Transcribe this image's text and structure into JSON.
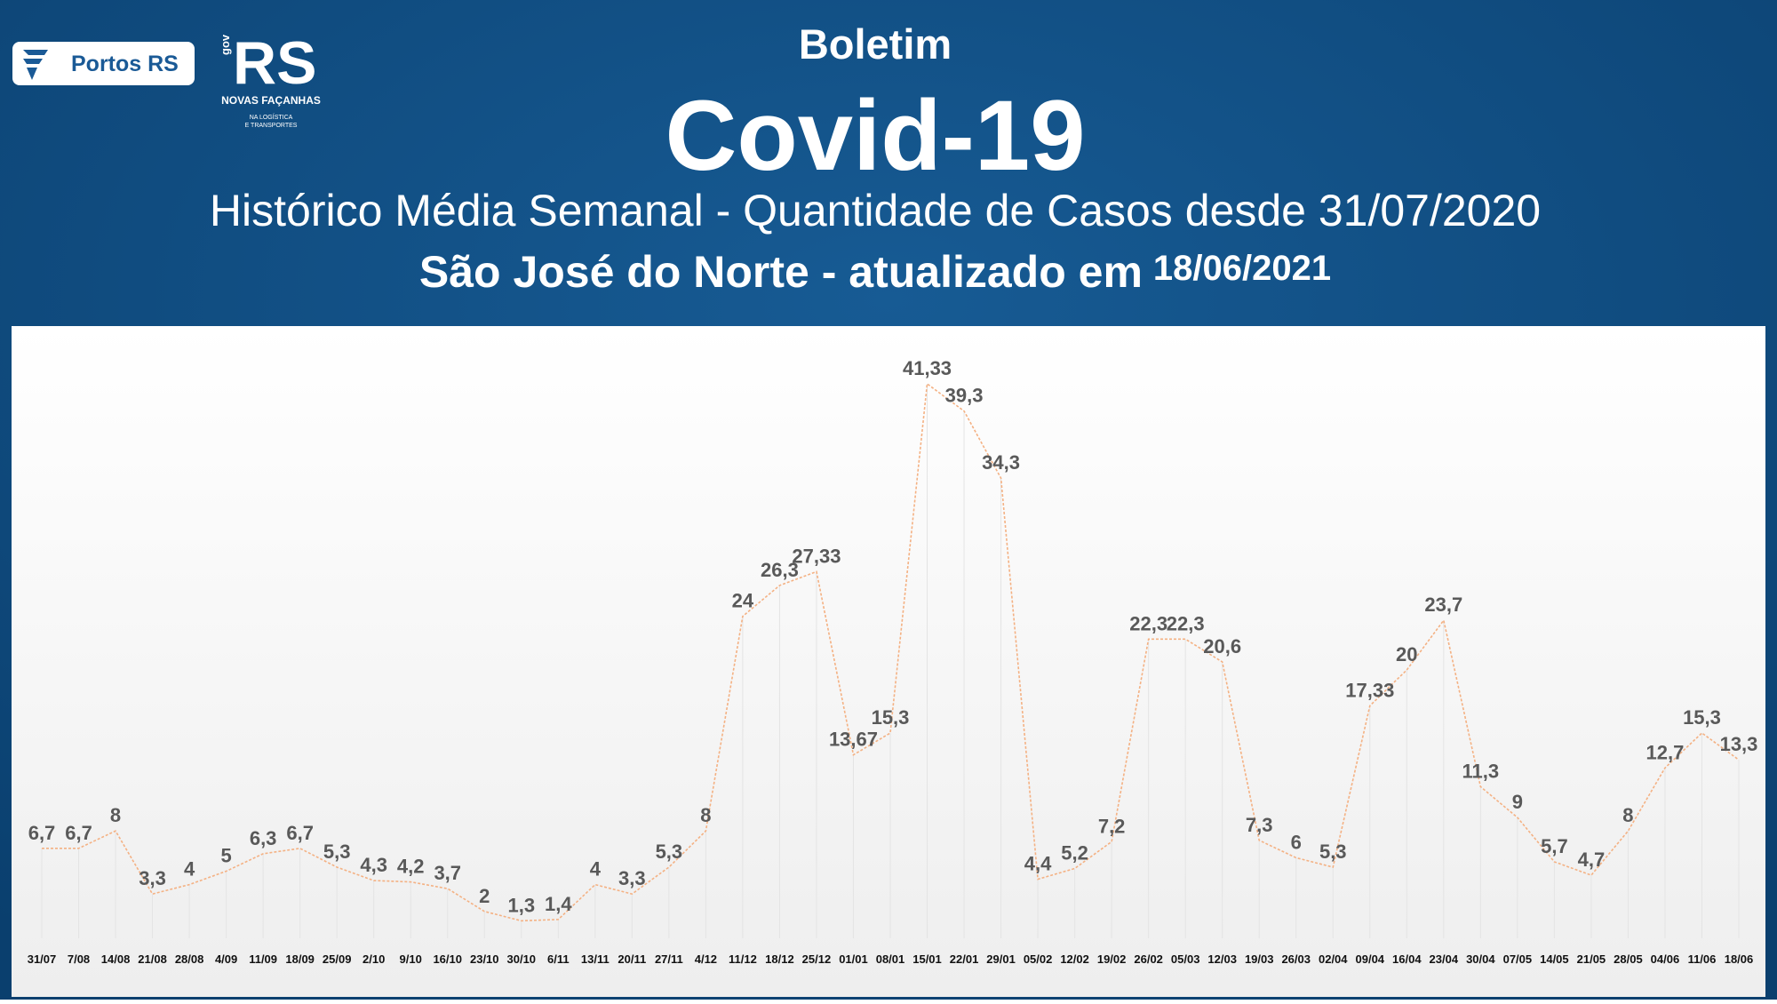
{
  "header": {
    "logo_left": "Portos RS",
    "logo_gov": "gov",
    "logo_rs": "RS",
    "logo_motto": "NOVAS FAÇANHAS",
    "logo_sub1": "NA LOGÍSTICA",
    "logo_sub2": "E TRANSPORTES",
    "kicker": "Boletim",
    "title": "Covid-19",
    "subtitle": "Histórico Média Semanal - Quantidade de Casos desde 31/07/2020",
    "place": "São José do Norte - atualizado em",
    "date": "18/06/2021"
  },
  "chart_data": {
    "type": "line",
    "color": "#f4b183",
    "categories": [
      "31/07",
      "7/08",
      "14/08",
      "21/08",
      "28/08",
      "4/09",
      "11/09",
      "18/09",
      "25/09",
      "2/10",
      "9/10",
      "16/10",
      "23/10",
      "30/10",
      "6/11",
      "13/11",
      "20/11",
      "27/11",
      "4/12",
      "11/12",
      "18/12",
      "25/12",
      "01/01",
      "08/01",
      "15/01",
      "22/01",
      "29/01",
      "05/02",
      "12/02",
      "19/02",
      "26/02",
      "05/03",
      "12/03",
      "19/03",
      "26/03",
      "02/04",
      "09/04",
      "16/04",
      "23/04",
      "30/04",
      "07/05",
      "14/05",
      "21/05",
      "28/05",
      "04/06",
      "11/06",
      "18/06"
    ],
    "values": [
      6.7,
      6.7,
      8,
      3.3,
      4,
      5,
      6.3,
      6.7,
      5.3,
      4.3,
      4.2,
      3.7,
      2,
      1.3,
      1.4,
      4,
      3.3,
      5.3,
      8,
      24,
      26.3,
      27.33,
      13.67,
      15.3,
      41.33,
      39.3,
      34.3,
      4.4,
      5.2,
      7.2,
      22.3,
      22.3,
      20.6,
      7.3,
      6,
      5.3,
      17.33,
      20,
      23.7,
      11.3,
      9,
      5.7,
      4.7,
      8,
      12.7,
      15.3,
      13.3
    ],
    "value_labels": [
      "6,7",
      "6,7",
      "8",
      "3,3",
      "4",
      "5",
      "6,3",
      "6,7",
      "5,3",
      "4,3",
      "4,2",
      "3,7",
      "2",
      "1,3",
      "1,4",
      "4",
      "3,3",
      "5,3",
      "8",
      "24",
      "26,3",
      "27,33",
      "13,67",
      "15,3",
      "41,33",
      "39,3",
      "34,3",
      "4,4",
      "5,2",
      "7,2",
      "22,3",
      "22,3",
      "20,6",
      "7,3",
      "6",
      "5,3",
      "17,33",
      "20",
      "23,7",
      "11,3",
      "9",
      "5,7",
      "4,7",
      "8",
      "12,7",
      "15,3",
      "13,3"
    ]
  }
}
